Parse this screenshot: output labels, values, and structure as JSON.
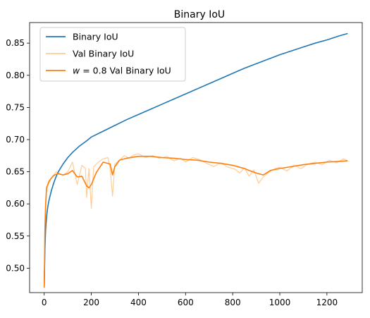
{
  "chart_data": {
    "type": "line",
    "title": "Binary IoU",
    "xlabel": "",
    "ylabel": "",
    "xlim": [
      -62,
      1350
    ],
    "ylim": [
      0.462,
      0.882
    ],
    "xticks": [
      0,
      200,
      400,
      600,
      800,
      1000,
      1200
    ],
    "xtick_labels": [
      "0",
      "200",
      "400",
      "600",
      "800",
      "1000",
      "1200"
    ],
    "yticks": [
      0.5,
      0.55,
      0.6,
      0.65,
      0.7,
      0.75,
      0.8,
      0.85
    ],
    "ytick_labels": [
      "0.50",
      "0.55",
      "0.60",
      "0.65",
      "0.70",
      "0.75",
      "0.80",
      "0.85"
    ],
    "grid": false,
    "legend_position": "top-left",
    "series": [
      {
        "name": "Binary IoU",
        "color": "#1f77b4",
        "x": [
          0,
          3,
          6,
          10,
          15,
          20,
          30,
          40,
          50,
          60,
          80,
          100,
          120,
          150,
          180,
          200,
          250,
          300,
          350,
          400,
          450,
          500,
          550,
          600,
          650,
          700,
          750,
          800,
          850,
          900,
          950,
          1000,
          1050,
          1100,
          1150,
          1200,
          1250,
          1288
        ],
        "y": [
          0.47,
          0.53,
          0.56,
          0.58,
          0.595,
          0.605,
          0.62,
          0.632,
          0.642,
          0.65,
          0.662,
          0.672,
          0.68,
          0.69,
          0.698,
          0.704,
          0.713,
          0.722,
          0.731,
          0.739,
          0.747,
          0.755,
          0.763,
          0.771,
          0.779,
          0.787,
          0.795,
          0.803,
          0.811,
          0.818,
          0.825,
          0.832,
          0.838,
          0.844,
          0.85,
          0.855,
          0.861,
          0.865
        ]
      },
      {
        "name": "Val Binary IoU",
        "color": "#ffbb78",
        "x": [
          0,
          3,
          6,
          10,
          15,
          20,
          30,
          40,
          50,
          60,
          80,
          100,
          120,
          140,
          160,
          175,
          180,
          190,
          200,
          210,
          230,
          250,
          270,
          280,
          290,
          300,
          320,
          340,
          360,
          380,
          400,
          430,
          460,
          490,
          520,
          550,
          580,
          600,
          630,
          660,
          690,
          720,
          750,
          780,
          810,
          830,
          850,
          870,
          890,
          910,
          930,
          950,
          980,
          1000,
          1030,
          1060,
          1090,
          1120,
          1150,
          1180,
          1210,
          1240,
          1270,
          1288
        ],
        "y": [
          0.47,
          0.55,
          0.59,
          0.62,
          0.628,
          0.632,
          0.64,
          0.645,
          0.65,
          0.648,
          0.645,
          0.65,
          0.665,
          0.63,
          0.66,
          0.655,
          0.61,
          0.655,
          0.593,
          0.658,
          0.665,
          0.67,
          0.672,
          0.655,
          0.612,
          0.662,
          0.668,
          0.675,
          0.671,
          0.676,
          0.678,
          0.672,
          0.675,
          0.671,
          0.674,
          0.667,
          0.671,
          0.665,
          0.672,
          0.669,
          0.663,
          0.658,
          0.664,
          0.657,
          0.654,
          0.648,
          0.656,
          0.643,
          0.653,
          0.632,
          0.642,
          0.648,
          0.655,
          0.657,
          0.651,
          0.66,
          0.655,
          0.662,
          0.665,
          0.661,
          0.668,
          0.664,
          0.67,
          0.667
        ]
      },
      {
        "name": "$w = 0.8$ Val Binary IoU",
        "color": "#ff7f0e",
        "x": [
          0,
          3,
          6,
          10,
          15,
          20,
          30,
          40,
          50,
          60,
          80,
          100,
          120,
          140,
          160,
          180,
          190,
          200,
          220,
          250,
          280,
          290,
          300,
          320,
          350,
          400,
          450,
          500,
          550,
          600,
          650,
          700,
          750,
          800,
          830,
          850,
          870,
          900,
          930,
          960,
          1000,
          1050,
          1100,
          1150,
          1200,
          1250,
          1288
        ],
        "y": [
          0.47,
          0.56,
          0.6,
          0.625,
          0.63,
          0.635,
          0.64,
          0.644,
          0.646,
          0.647,
          0.645,
          0.647,
          0.652,
          0.642,
          0.643,
          0.628,
          0.625,
          0.63,
          0.648,
          0.665,
          0.662,
          0.645,
          0.658,
          0.668,
          0.671,
          0.674,
          0.674,
          0.672,
          0.671,
          0.669,
          0.668,
          0.665,
          0.663,
          0.66,
          0.657,
          0.655,
          0.652,
          0.648,
          0.645,
          0.652,
          0.655,
          0.658,
          0.661,
          0.663,
          0.665,
          0.666,
          0.667
        ]
      }
    ]
  }
}
